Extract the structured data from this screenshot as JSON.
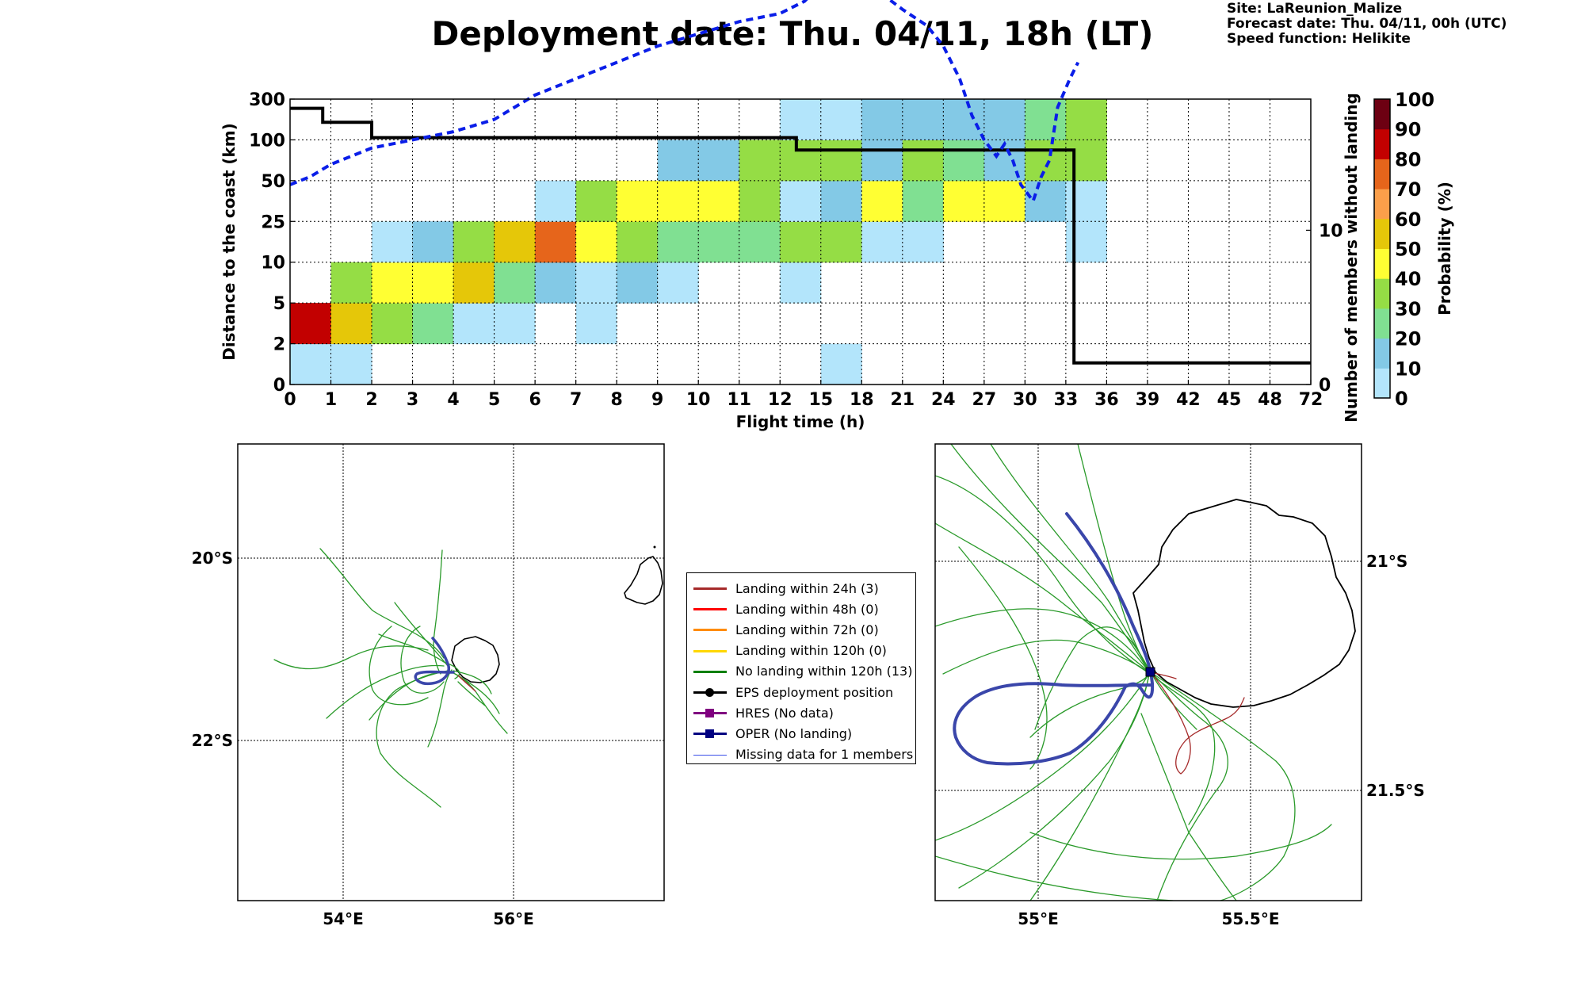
{
  "title": "Deployment date: Thu. 04/11, 18h (LT)",
  "site_info": [
    "Site: LaReunion_Malize",
    "Forecast date: Thu. 04/11, 00h (UTC)",
    "Speed function: Helikite"
  ],
  "chart_data": [
    {
      "type": "heatmap",
      "xlabel": "Flight time (h)",
      "ylabel": "Distance to the coast (km)",
      "y2label": "Number of members without landing",
      "x_ticks": [
        "0",
        "1",
        "2",
        "3",
        "4",
        "5",
        "6",
        "7",
        "8",
        "9",
        "10",
        "11",
        "12",
        "15",
        "18",
        "21",
        "24",
        "27",
        "30",
        "33",
        "36",
        "39",
        "42",
        "45",
        "48",
        "72"
      ],
      "y_ticks": [
        "0",
        "2",
        "5",
        "10",
        "25",
        "50",
        "100",
        "300"
      ],
      "y2_ticks": [
        "0",
        "10"
      ],
      "y2_range": [
        0,
        18.5
      ],
      "colorbar": {
        "label": "Probability (%)",
        "ticks": [
          "0",
          "10",
          "20",
          "30",
          "40",
          "50",
          "60",
          "70",
          "80",
          "90",
          "100"
        ],
        "colors": [
          "#b3e5fb",
          "#83c9e6",
          "#80e092",
          "#95dd45",
          "#ffff33",
          "#e5c709",
          "#fb9f4a",
          "#e6651b",
          "#c20000",
          "#6d0012"
        ]
      },
      "cells": [
        [
          0,
          0,
          0
        ],
        [
          1,
          0,
          0
        ],
        [
          0,
          1,
          8
        ],
        [
          1,
          1,
          5
        ],
        [
          2,
          1,
          3
        ],
        [
          3,
          1,
          2
        ],
        [
          4,
          1,
          0
        ],
        [
          5,
          1,
          0
        ],
        [
          7,
          1,
          0
        ],
        [
          1,
          2,
          3
        ],
        [
          2,
          2,
          4
        ],
        [
          3,
          2,
          4
        ],
        [
          4,
          2,
          5
        ],
        [
          5,
          2,
          2
        ],
        [
          6,
          2,
          1
        ],
        [
          7,
          2,
          0
        ],
        [
          8,
          2,
          1
        ],
        [
          9,
          2,
          0
        ],
        [
          12,
          2,
          0
        ],
        [
          2,
          3,
          0
        ],
        [
          3,
          3,
          1
        ],
        [
          4,
          3,
          3
        ],
        [
          5,
          3,
          5
        ],
        [
          6,
          3,
          7
        ],
        [
          7,
          3,
          4
        ],
        [
          8,
          3,
          3
        ],
        [
          9,
          3,
          2
        ],
        [
          10,
          3,
          2
        ],
        [
          11,
          3,
          2
        ],
        [
          12,
          3,
          3
        ],
        [
          13,
          3,
          3
        ],
        [
          14,
          3,
          0
        ],
        [
          15,
          3,
          0
        ],
        [
          19,
          3,
          0
        ],
        [
          6,
          4,
          0
        ],
        [
          7,
          4,
          3
        ],
        [
          8,
          4,
          4
        ],
        [
          9,
          4,
          4
        ],
        [
          10,
          4,
          4
        ],
        [
          11,
          4,
          3
        ],
        [
          12,
          4,
          0
        ],
        [
          13,
          4,
          1
        ],
        [
          14,
          4,
          4
        ],
        [
          15,
          4,
          2
        ],
        [
          16,
          4,
          4
        ],
        [
          17,
          4,
          4
        ],
        [
          18,
          4,
          1
        ],
        [
          19,
          4,
          0
        ],
        [
          9,
          5,
          1
        ],
        [
          10,
          5,
          1
        ],
        [
          11,
          5,
          3
        ],
        [
          12,
          5,
          3
        ],
        [
          13,
          5,
          3
        ],
        [
          14,
          5,
          1
        ],
        [
          15,
          5,
          3
        ],
        [
          16,
          5,
          2
        ],
        [
          17,
          5,
          1
        ],
        [
          18,
          5,
          3
        ],
        [
          19,
          5,
          3
        ],
        [
          12,
          6,
          0
        ],
        [
          13,
          6,
          0
        ],
        [
          14,
          6,
          1
        ],
        [
          15,
          6,
          1
        ],
        [
          16,
          6,
          1
        ],
        [
          17,
          6,
          1
        ],
        [
          18,
          6,
          2
        ],
        [
          19,
          6,
          3
        ],
        [
          13,
          0,
          0
        ]
      ],
      "cells_note": "[x_bin, y_bin, color_index]",
      "members_step_line": [
        [
          0,
          17.9
        ],
        [
          0.8,
          17.9
        ],
        [
          0.8,
          17
        ],
        [
          2,
          17
        ],
        [
          2,
          16
        ],
        [
          12.4,
          16
        ],
        [
          12.4,
          15.2
        ],
        [
          19.2,
          15.2
        ],
        [
          19.2,
          1.4
        ],
        [
          25,
          1.4
        ]
      ],
      "median_distance_line": [
        [
          0,
          4.9
        ],
        [
          0.5,
          5.1
        ],
        [
          1,
          5.4
        ],
        [
          2,
          5.8
        ],
        [
          3,
          6
        ],
        [
          4,
          6.2
        ],
        [
          5,
          6.5
        ],
        [
          6,
          7.1
        ],
        [
          7,
          7.5
        ],
        [
          8,
          7.9
        ],
        [
          9,
          8.3
        ],
        [
          10,
          8.6
        ],
        [
          11,
          8.9
        ],
        [
          12,
          9.1
        ],
        [
          12.6,
          9.4
        ],
        [
          13,
          9.8
        ],
        [
          13.6,
          10.1
        ],
        [
          14,
          10
        ],
        [
          14.6,
          9.5
        ],
        [
          15,
          9.2
        ],
        [
          15.6,
          8.8
        ],
        [
          16,
          8.3
        ],
        [
          16.4,
          7.5
        ],
        [
          16.7,
          6.6
        ],
        [
          17,
          6
        ],
        [
          17.3,
          5.6
        ],
        [
          17.5,
          5.9
        ],
        [
          17.7,
          5.5
        ],
        [
          17.9,
          4.9
        ],
        [
          18.2,
          4.5
        ],
        [
          18.4,
          5.1
        ],
        [
          18.6,
          5.5
        ],
        [
          18.8,
          6.8
        ],
        [
          19.1,
          7.5
        ],
        [
          19.3,
          7.9
        ]
      ]
    },
    {
      "type": "map",
      "x_ticks": [
        "54°E",
        "56°E"
      ],
      "y_ticks": [
        "20°S",
        "22°S"
      ],
      "lon_range": [
        52.8,
        57.8
      ],
      "lat_range": [
        -23.5,
        -18.5
      ]
    },
    {
      "type": "map",
      "x_ticks": [
        "55°E",
        "55.5°E"
      ],
      "y_ticks": [
        "21°S",
        "21.5°S"
      ],
      "lon_range": [
        54.75,
        55.78
      ],
      "lat_range": [
        -21.73,
        -20.73
      ]
    }
  ],
  "legend": [
    {
      "label": "Landing within 24h (3)",
      "color": "#a52a2a",
      "marker": "none"
    },
    {
      "label": "Landing within 48h (0)",
      "color": "#ff0000",
      "marker": "none"
    },
    {
      "label": "Landing within 72h (0)",
      "color": "#ff8c00",
      "marker": "none"
    },
    {
      "label": "Landing within 120h (0)",
      "color": "#ffd700",
      "marker": "none"
    },
    {
      "label": "No landing within 120h (13)",
      "color": "#008000",
      "marker": "none"
    },
    {
      "label": "EPS deployment position",
      "color": "#000000",
      "marker": "round"
    },
    {
      "label": "HRES (No data)",
      "color": "#800080",
      "marker": "square"
    },
    {
      "label": "OPER (No landing)",
      "color": "#000080",
      "marker": "square"
    },
    {
      "label": "Missing data for 1 members",
      "color": "#3c50e8",
      "marker": "thin"
    }
  ]
}
